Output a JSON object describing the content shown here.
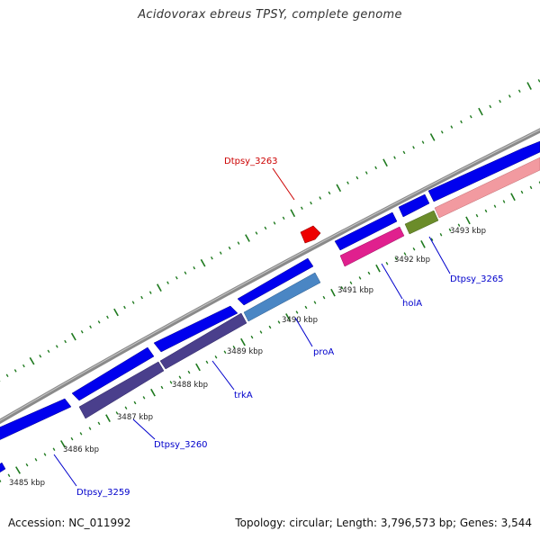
{
  "title": "Acidovorax ebreus TPSY, complete genome",
  "footer": {
    "accession": "Accession: NC_011992",
    "summary": "Topology: circular; Length: 3,796,573 bp; Genes: 3,544"
  },
  "colors": {
    "backbone": "#8a8a8a",
    "forward_gene": "#0000ee",
    "tick": "#1f7a1f",
    "label_blue": "#0000cc",
    "label_red": "#cc0000"
  },
  "ticks": [
    {
      "label": "3485 kbp",
      "kbp": 3485
    },
    {
      "label": "3486 kbp",
      "kbp": 3486
    },
    {
      "label": "3487 kbp",
      "kbp": 3487
    },
    {
      "label": "3488 kbp",
      "kbp": 3488
    },
    {
      "label": "3489 kbp",
      "kbp": 3489
    },
    {
      "label": "3490 kbp",
      "kbp": 3490
    },
    {
      "label": "3491 kbp",
      "kbp": 3491
    },
    {
      "label": "3492 kbp",
      "kbp": 3492
    },
    {
      "label": "3493 kbp",
      "kbp": 3493
    }
  ],
  "genes": [
    {
      "id": "forward-gene-1",
      "track": "forward",
      "color": "#0000ee"
    },
    {
      "id": "forward-gene-2",
      "track": "forward",
      "color": "#0000ee"
    },
    {
      "id": "forward-gene-3",
      "track": "forward",
      "color": "#0000ee"
    },
    {
      "id": "forward-gene-4",
      "track": "forward",
      "color": "#0000ee"
    },
    {
      "id": "forward-gene-5",
      "track": "forward",
      "color": "#0000ee"
    },
    {
      "id": "forward-gene-6",
      "track": "forward",
      "color": "#0000ee"
    },
    {
      "id": "forward-gene-7",
      "track": "forward",
      "color": "#0000ee"
    },
    {
      "id": "forward-gene-8",
      "track": "forward",
      "color": "#0000ee"
    },
    {
      "id": "forward-gene-9",
      "track": "forward",
      "color": "#0000ee"
    },
    {
      "id": "Dtpsy_3263",
      "track": "outer",
      "color": "#ee0000"
    },
    {
      "id": "Dtpsy_3260",
      "track": "reverse",
      "color": "#4a3f8c"
    },
    {
      "id": "trkA",
      "track": "reverse",
      "color": "#4a3f8c"
    },
    {
      "id": "proA",
      "track": "reverse",
      "color": "#4a86c4"
    },
    {
      "id": "holA",
      "track": "reverse",
      "color": "#e0208e"
    },
    {
      "id": "Dtpsy_3265",
      "track": "reverse",
      "color": "#6b8c2a"
    },
    {
      "id": "reverse-gene-pink",
      "track": "reverse",
      "color": "#f29aa0"
    }
  ],
  "gene_labels": [
    {
      "text": "Dtpsy_3259",
      "color": "#0000cc"
    },
    {
      "text": "Dtpsy_3260",
      "color": "#0000cc"
    },
    {
      "text": "trkA",
      "color": "#0000cc"
    },
    {
      "text": "proA",
      "color": "#0000cc"
    },
    {
      "text": "holA",
      "color": "#0000cc"
    },
    {
      "text": "Dtpsy_3265",
      "color": "#0000cc"
    },
    {
      "text": "Dtpsy_3263",
      "color": "#cc0000"
    }
  ]
}
